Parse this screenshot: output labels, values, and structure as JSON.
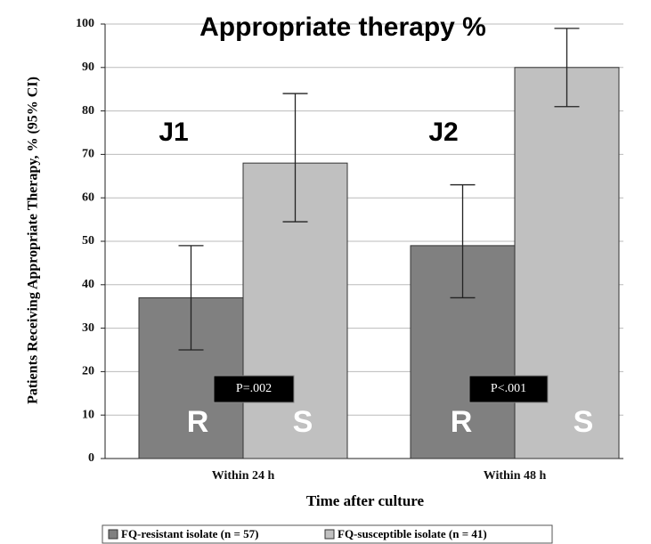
{
  "chart_data": {
    "type": "bar",
    "title": "Appropriate therapy %",
    "y_label": "Patients Receiving Appropriate Therapy, % (95% CI)",
    "x_label": "Time after culture",
    "categories": [
      "Within 24 h",
      "Within 48 h"
    ],
    "series": [
      {
        "name": "FQ-resistant isolate (n = 57)",
        "color": "#808080",
        "values": [
          37,
          49
        ],
        "ci_low": [
          25,
          37
        ],
        "ci_high": [
          49,
          63
        ]
      },
      {
        "name": "FQ-susceptible isolate (n = 41)",
        "color": "#c0c0c0",
        "values": [
          68,
          90
        ],
        "ci_low": [
          54.5,
          81
        ],
        "ci_high": [
          84,
          99
        ]
      }
    ],
    "ylim": [
      0,
      100
    ],
    "yticks": [
      0,
      10,
      20,
      30,
      40,
      50,
      60,
      70,
      80,
      90,
      100
    ],
    "grid": true,
    "legend": "bottom",
    "annotations": [
      "J1",
      "J2",
      "R",
      "S",
      "R",
      "S",
      "P=.002",
      "P<.001"
    ]
  }
}
